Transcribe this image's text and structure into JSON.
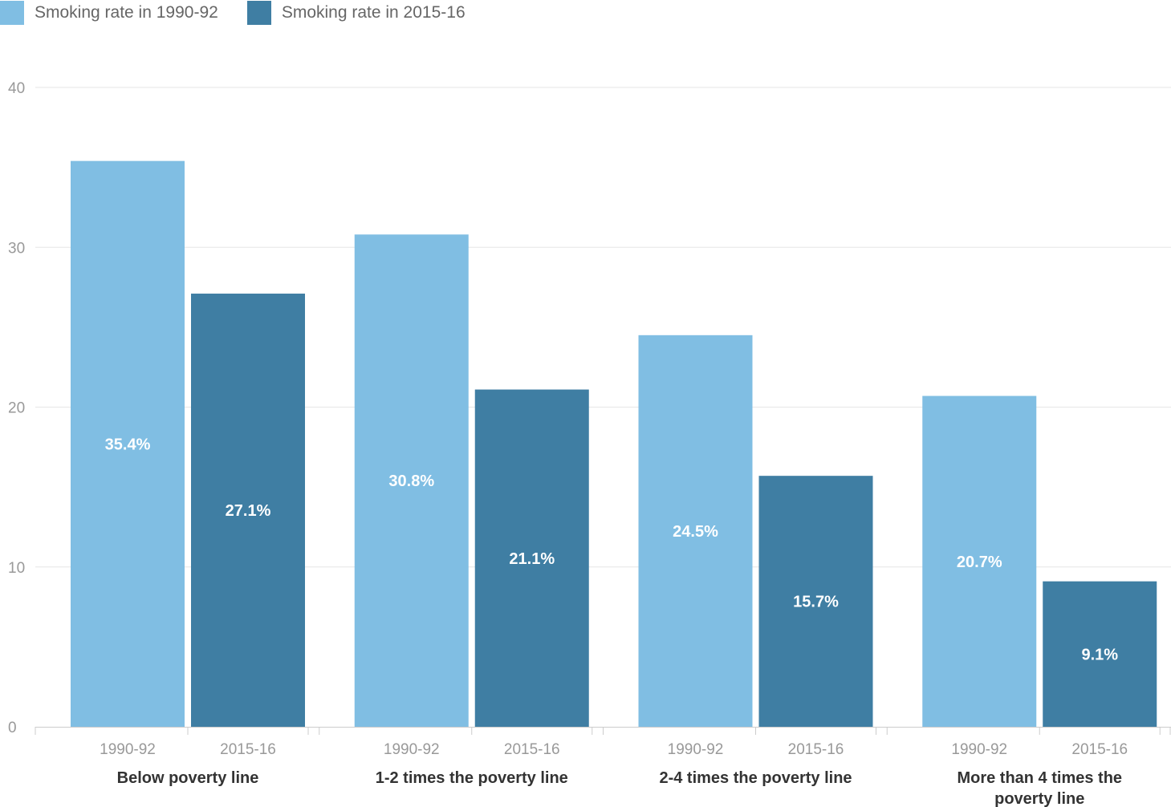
{
  "chart_data": {
    "type": "bar",
    "groups": [
      {
        "label": [
          "Below poverty line"
        ]
      },
      {
        "label": [
          "1-2 times the poverty line"
        ]
      },
      {
        "label": [
          "2-4 times the poverty line"
        ]
      },
      {
        "label": [
          "More than 4 times the",
          "poverty line"
        ]
      }
    ],
    "series": [
      {
        "name": "Smoking rate in 1990-92",
        "category": "1990-92",
        "color": "#80bee3",
        "values": [
          35.4,
          30.8,
          24.5,
          20.7
        ],
        "labels": [
          "35.4%",
          "30.8%",
          "24.5%",
          "20.7%"
        ]
      },
      {
        "name": "Smoking rate in 2015-16",
        "category": "2015-16",
        "color": "#3f7ea3",
        "values": [
          27.1,
          21.1,
          15.7,
          9.1
        ],
        "labels": [
          "27.1%",
          "21.1%",
          "15.7%",
          "9.1%"
        ]
      }
    ],
    "ylim": [
      0,
      40
    ],
    "yticks": [
      0,
      10,
      20,
      30,
      40
    ],
    "grid": true,
    "legend_position": "top-left",
    "title": "",
    "xlabel": "",
    "ylabel": ""
  }
}
